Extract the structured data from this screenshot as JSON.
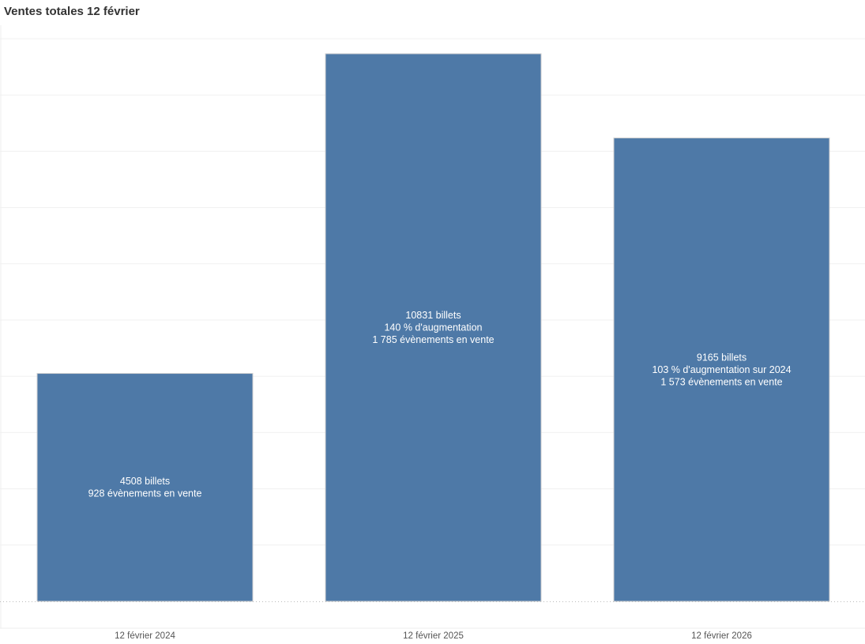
{
  "chart_data": {
    "type": "bar",
    "title": "Ventes totales 12 février",
    "categories": [
      "12 février 2024",
      "12 février 2025",
      "12 février 2026"
    ],
    "values": [
      4508,
      10831,
      9165
    ],
    "data_labels": [
      [
        "4508 billets",
        "928 évènements en vente"
      ],
      [
        "10831 billets",
        "140 % d'augmentation",
        "1 785 évènements en vente"
      ],
      [
        "9165 billets",
        "103 % d'augmentation sur 2024",
        "1 573 évènements en vente"
      ]
    ],
    "xlabel": "",
    "ylabel": "",
    "grid": true,
    "bar_color": "#4e79a7"
  }
}
